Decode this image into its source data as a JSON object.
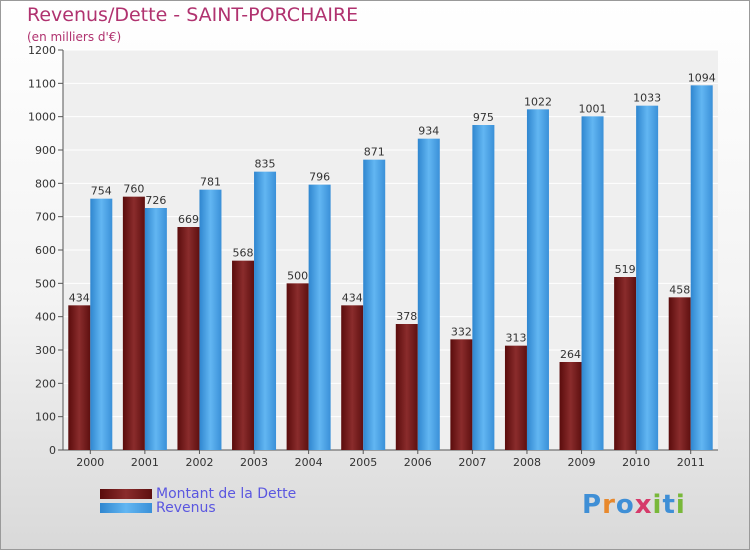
{
  "chart_data": {
    "type": "bar",
    "title": "Revenus/Dette - SAINT-PORCHAIRE",
    "subtitle": "(en milliers d'€)",
    "categories": [
      "2000",
      "2001",
      "2002",
      "2003",
      "2004",
      "2005",
      "2006",
      "2007",
      "2008",
      "2009",
      "2010",
      "2011"
    ],
    "series": [
      {
        "name": "Montant de la Dette",
        "color": "#7a1e1e",
        "values": [
          434,
          760,
          669,
          568,
          500,
          434,
          378,
          332,
          313,
          264,
          519,
          458
        ]
      },
      {
        "name": "Revenus",
        "color": "#4aa3e8",
        "values": [
          754,
          726,
          781,
          835,
          796,
          871,
          934,
          975,
          1022,
          1001,
          1033,
          1094
        ]
      }
    ],
    "ylim": [
      0,
      1200
    ],
    "yticks": [
      0,
      100,
      200,
      300,
      400,
      500,
      600,
      700,
      800,
      900,
      1000,
      1100,
      1200
    ],
    "grid": true,
    "legend_position": "bottom-left"
  },
  "logo": {
    "letters": [
      "P",
      "r",
      "o",
      "x",
      "i",
      "t",
      "i"
    ],
    "colors": [
      "#3f8fd6",
      "#e8892d",
      "#3f8fd6",
      "#d63a6a",
      "#79b83a",
      "#3f8fd6",
      "#79b83a"
    ]
  }
}
